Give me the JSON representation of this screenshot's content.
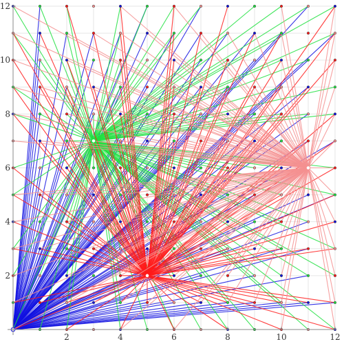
{
  "chart_data": {
    "type": "scatter",
    "title": "",
    "xlabel": "",
    "ylabel": "",
    "xlim": [
      0,
      12
    ],
    "ylim": [
      0,
      12
    ],
    "x_ticks": [
      "2",
      "4",
      "6",
      "8",
      "10",
      "12"
    ],
    "y_ticks": [
      "2",
      "4",
      "6",
      "8",
      "10",
      "12"
    ],
    "grid": true,
    "lattice": {
      "x_from": 0,
      "x_to": 12,
      "y_from": 0,
      "y_to": 12,
      "step": 1
    },
    "hubs": [
      {
        "x": 0,
        "y": 0,
        "color": "#1010e0"
      },
      {
        "x": 3,
        "y": 7,
        "color": "#20e040"
      },
      {
        "x": 5,
        "y": 2,
        "color": "#ff1a1a"
      },
      {
        "x": 11,
        "y": 6,
        "color": "#f49090"
      }
    ],
    "hub_color_order": [
      "#1010e0",
      "#20e040",
      "#ff1a1a",
      "#f49090"
    ]
  }
}
